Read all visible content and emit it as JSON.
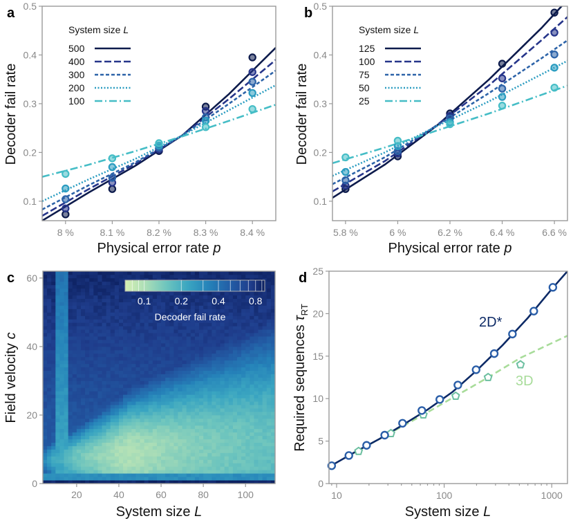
{
  "colors": {
    "500": "#0d1b4c",
    "400": "#26358a",
    "300": "#2c63a8",
    "200": "#2a9cc0",
    "100": "#45bdc6",
    "2D": "#0d2a66",
    "3D": "#a8dc9a"
  },
  "chart_data": [
    {
      "panel": "a",
      "type": "line",
      "xlabel": "Physical error rate p",
      "ylabel": "Decoder fail rate",
      "xlim": [
        0.0795,
        0.0845
      ],
      "ylim": [
        0.06,
        0.5
      ],
      "xticks": [
        {
          "v": 0.08,
          "label": "8 %"
        },
        {
          "v": 0.081,
          "label": "8.1 %"
        },
        {
          "v": 0.082,
          "label": "8.2 %"
        },
        {
          "v": 0.083,
          "label": "8.3 %"
        },
        {
          "v": 0.084,
          "label": "8.4 %"
        }
      ],
      "yticks": [
        {
          "v": 0.1,
          "label": "0.1"
        },
        {
          "v": 0.2,
          "label": "0.2"
        },
        {
          "v": 0.3,
          "label": "0.3"
        },
        {
          "v": 0.4,
          "label": "0.4"
        },
        {
          "v": 0.5,
          "label": "0.5"
        }
      ],
      "legend_title": "System size L",
      "legend_placement": "top-left",
      "series": [
        {
          "name": "500",
          "color": "#0d1b4c",
          "dash": "solid",
          "fit": [
            [
              0.0795,
              0.06
            ],
            [
              0.0805,
              0.118
            ],
            [
              0.0815,
              0.173
            ],
            [
              0.0825,
              0.235
            ],
            [
              0.0835,
              0.32
            ],
            [
              0.0845,
              0.415
            ]
          ],
          "x": [
            0.08,
            0.081,
            0.082,
            0.083,
            0.084
          ],
          "y": [
            0.073,
            0.125,
            0.203,
            0.294,
            0.395
          ]
        },
        {
          "name": "400",
          "color": "#26358a",
          "dash": "10,4",
          "fit": [
            [
              0.0795,
              0.07
            ],
            [
              0.0805,
              0.125
            ],
            [
              0.0815,
              0.177
            ],
            [
              0.0825,
              0.235
            ],
            [
              0.0835,
              0.31
            ],
            [
              0.0845,
              0.39
            ]
          ],
          "x": [
            0.08,
            0.081,
            0.082,
            0.083,
            0.084
          ],
          "y": [
            0.085,
            0.138,
            0.206,
            0.285,
            0.365
          ]
        },
        {
          "name": "300",
          "color": "#2c63a8",
          "dash": "5,3",
          "fit": [
            [
              0.0795,
              0.083
            ],
            [
              0.0805,
              0.133
            ],
            [
              0.0815,
              0.18
            ],
            [
              0.0825,
              0.235
            ],
            [
              0.0835,
              0.3
            ],
            [
              0.0845,
              0.368
            ]
          ],
          "x": [
            0.08,
            0.081,
            0.082,
            0.083,
            0.084
          ],
          "y": [
            0.104,
            0.148,
            0.21,
            0.272,
            0.345
          ]
        },
        {
          "name": "200",
          "color": "#2a9cc0",
          "dash": "2,2.5",
          "fit": [
            [
              0.0795,
              0.1
            ],
            [
              0.0805,
              0.145
            ],
            [
              0.0815,
              0.187
            ],
            [
              0.0825,
              0.235
            ],
            [
              0.0835,
              0.287
            ],
            [
              0.0845,
              0.338
            ]
          ],
          "x": [
            0.08,
            0.081,
            0.082,
            0.083,
            0.084
          ],
          "y": [
            0.126,
            0.17,
            0.214,
            0.265,
            0.322
          ]
        },
        {
          "name": "100",
          "color": "#45bdc6",
          "dash": "11,4,2,4",
          "fit": [
            [
              0.0795,
              0.15
            ],
            [
              0.0805,
              0.175
            ],
            [
              0.0815,
              0.203
            ],
            [
              0.0825,
              0.233
            ],
            [
              0.0835,
              0.265
            ],
            [
              0.0845,
              0.298
            ]
          ],
          "x": [
            0.08,
            0.081,
            0.082,
            0.083,
            0.084
          ],
          "y": [
            0.156,
            0.188,
            0.219,
            0.252,
            0.289
          ]
        }
      ]
    },
    {
      "panel": "b",
      "type": "line",
      "xlabel": "Physical error rate p",
      "ylabel": "Decoder fail rate",
      "xlim": [
        0.0575,
        0.0665
      ],
      "ylim": [
        0.06,
        0.5
      ],
      "xticks": [
        {
          "v": 0.058,
          "label": "5.8 %"
        },
        {
          "v": 0.06,
          "label": "6 %"
        },
        {
          "v": 0.062,
          "label": "6.2 %"
        },
        {
          "v": 0.064,
          "label": "6.4 %"
        },
        {
          "v": 0.066,
          "label": "6.6 %"
        }
      ],
      "yticks": [
        {
          "v": 0.1,
          "label": "0.1"
        },
        {
          "v": 0.2,
          "label": "0.2"
        },
        {
          "v": 0.3,
          "label": "0.3"
        },
        {
          "v": 0.4,
          "label": "0.4"
        },
        {
          "v": 0.5,
          "label": "0.5"
        }
      ],
      "legend_title": "System size L",
      "legend_placement": "top-left",
      "series": [
        {
          "name": "125",
          "color": "#0d1b4c",
          "dash": "solid",
          "fit": [
            [
              0.0575,
              0.107
            ],
            [
              0.0595,
              0.175
            ],
            [
              0.0615,
              0.255
            ],
            [
              0.0635,
              0.35
            ],
            [
              0.0655,
              0.455
            ],
            [
              0.0665,
              0.513
            ]
          ],
          "x": [
            0.058,
            0.06,
            0.062,
            0.064,
            0.066
          ],
          "y": [
            0.125,
            0.192,
            0.28,
            0.382,
            0.487
          ]
        },
        {
          "name": "100",
          "color": "#26358a",
          "dash": "10,4",
          "fit": [
            [
              0.0575,
              0.12
            ],
            [
              0.0595,
              0.182
            ],
            [
              0.0615,
              0.256
            ],
            [
              0.0635,
              0.338
            ],
            [
              0.0655,
              0.43
            ],
            [
              0.0665,
              0.478
            ]
          ],
          "x": [
            0.058,
            0.06,
            0.062,
            0.064,
            0.066
          ],
          "y": [
            0.132,
            0.198,
            0.275,
            0.352,
            0.446
          ]
        },
        {
          "name": "75",
          "color": "#2c63a8",
          "dash": "5,3",
          "fit": [
            [
              0.0575,
              0.135
            ],
            [
              0.0595,
              0.19
            ],
            [
              0.0615,
              0.255
            ],
            [
              0.0635,
              0.322
            ],
            [
              0.0655,
              0.393
            ],
            [
              0.0665,
              0.43
            ]
          ],
          "x": [
            0.058,
            0.06,
            0.062,
            0.064,
            0.066
          ],
          "y": [
            0.143,
            0.203,
            0.27,
            0.331,
            0.401
          ]
        },
        {
          "name": "50",
          "color": "#2a9cc0",
          "dash": "2,2.5",
          "fit": [
            [
              0.0575,
              0.152
            ],
            [
              0.0595,
              0.2
            ],
            [
              0.0615,
              0.254
            ],
            [
              0.0635,
              0.305
            ],
            [
              0.0655,
              0.36
            ],
            [
              0.0665,
              0.388
            ]
          ],
          "x": [
            0.058,
            0.06,
            0.062,
            0.064,
            0.066
          ],
          "y": [
            0.16,
            0.213,
            0.262,
            0.314,
            0.374
          ]
        },
        {
          "name": "25",
          "color": "#45bdc6",
          "dash": "11,4,2,4",
          "fit": [
            [
              0.0575,
              0.178
            ],
            [
              0.0595,
              0.21
            ],
            [
              0.0615,
              0.245
            ],
            [
              0.0635,
              0.28
            ],
            [
              0.0655,
              0.318
            ],
            [
              0.0665,
              0.337
            ]
          ],
          "x": [
            0.058,
            0.06,
            0.062,
            0.064,
            0.066
          ],
          "y": [
            0.19,
            0.224,
            0.258,
            0.296,
            0.333
          ]
        }
      ]
    },
    {
      "panel": "c",
      "type": "heatmap",
      "xlabel": "System size L",
      "ylabel": "Field velocity c",
      "xlim": [
        4,
        114
      ],
      "ylim": [
        0,
        62
      ],
      "xticks": [
        {
          "v": 20,
          "label": "20"
        },
        {
          "v": 40,
          "label": "40"
        },
        {
          "v": 60,
          "label": "60"
        },
        {
          "v": 80,
          "label": "80"
        },
        {
          "v": 100,
          "label": "100"
        }
      ],
      "yticks": [
        {
          "v": 0,
          "label": "0"
        },
        {
          "v": 20,
          "label": "20"
        },
        {
          "v": 40,
          "label": "40"
        },
        {
          "v": 60,
          "label": "60"
        }
      ],
      "colorbar": {
        "label": "Decoder fail rate",
        "scale": "log",
        "ticks": [
          {
            "v": 0.1,
            "label": "0.1"
          },
          {
            "v": 0.2,
            "label": "0.2"
          },
          {
            "v": 0.4,
            "label": "0.4"
          },
          {
            "v": 0.8,
            "label": "0.8"
          }
        ],
        "range": [
          0.07,
          0.95
        ],
        "placement": "top-right"
      },
      "description_values": {
        "min_region": "c≈4-12, L≈30-70 ≈0.1",
        "max_region": "c<2 and large c ≈0.8"
      }
    },
    {
      "panel": "d",
      "type": "line",
      "xlabel": "System size L",
      "ylabel": "Required sequences τ_RT",
      "xscale": "log",
      "xlim": [
        8.5,
        1400
      ],
      "ylim": [
        0,
        25
      ],
      "xticks": [
        {
          "v": 10,
          "label": "10"
        },
        {
          "v": 100,
          "label": "100"
        },
        {
          "v": 1000,
          "label": "1000"
        }
      ],
      "yticks": [
        {
          "v": 0,
          "label": "0"
        },
        {
          "v": 5,
          "label": "5"
        },
        {
          "v": 10,
          "label": "10"
        },
        {
          "v": 15,
          "label": "15"
        },
        {
          "v": 20,
          "label": "20"
        },
        {
          "v": 25,
          "label": "25"
        }
      ],
      "series": [
        {
          "name": "2D*",
          "color": "#0d2a66",
          "marker": "circle",
          "x": [
            9,
            13,
            19,
            28,
            41,
            62,
            91,
            134,
            198,
            292,
            431,
            681,
            1024
          ],
          "y": [
            2.1,
            3.3,
            4.5,
            5.7,
            7.1,
            8.6,
            9.9,
            11.6,
            13.4,
            15.3,
            17.6,
            20.3,
            23.1
          ],
          "fit": [
            [
              9,
              2.15
            ],
            [
              15,
              3.75
            ],
            [
              25,
              5.25
            ],
            [
              40,
              6.8
            ],
            [
              70,
              8.7
            ],
            [
              120,
              10.8
            ],
            [
              200,
              13.3
            ],
            [
              350,
              16.3
            ],
            [
              600,
              19.5
            ],
            [
              1000,
              22.9
            ],
            [
              1400,
              25.0
            ]
          ]
        },
        {
          "name": "3D",
          "color": "#a8dc9a",
          "marker": "pentagon",
          "x": [
            16,
            32,
            64,
            128,
            256,
            512
          ],
          "y": [
            3.8,
            5.9,
            8.1,
            10.3,
            12.5,
            14.0
          ],
          "fit": [
            [
              14,
              3.5
            ],
            [
              30,
              5.8
            ],
            [
              64,
              8.1
            ],
            [
              128,
              10.3
            ],
            [
              256,
              12.5
            ],
            [
              512,
              14.8
            ],
            [
              1400,
              17.4
            ]
          ]
        }
      ]
    }
  ],
  "labels": {
    "a": "a",
    "b": "b",
    "c": "c",
    "d": "d",
    "a_xlabel": "Physical error rate ",
    "a_xlabel_var": "p",
    "b_xlabel": "Physical error rate ",
    "b_xlabel_var": "p",
    "ab_ylabel": "Decoder fail rate",
    "c_xlabel": "System size ",
    "c_xlabel_var": "L",
    "c_ylabel": "Field velocity ",
    "c_ylabel_var": "c",
    "d_xlabel": "System size ",
    "d_xlabel_var": "L",
    "d_ylabel": "Required sequences ",
    "d_ylabel_var": "τ",
    "d_ylabel_sub": "RT",
    "legend_title": "System size ",
    "legend_title_var": "L",
    "series_2d": "2D*",
    "series_3d": "3D",
    "colorbar_label": "Decoder fail rate"
  }
}
